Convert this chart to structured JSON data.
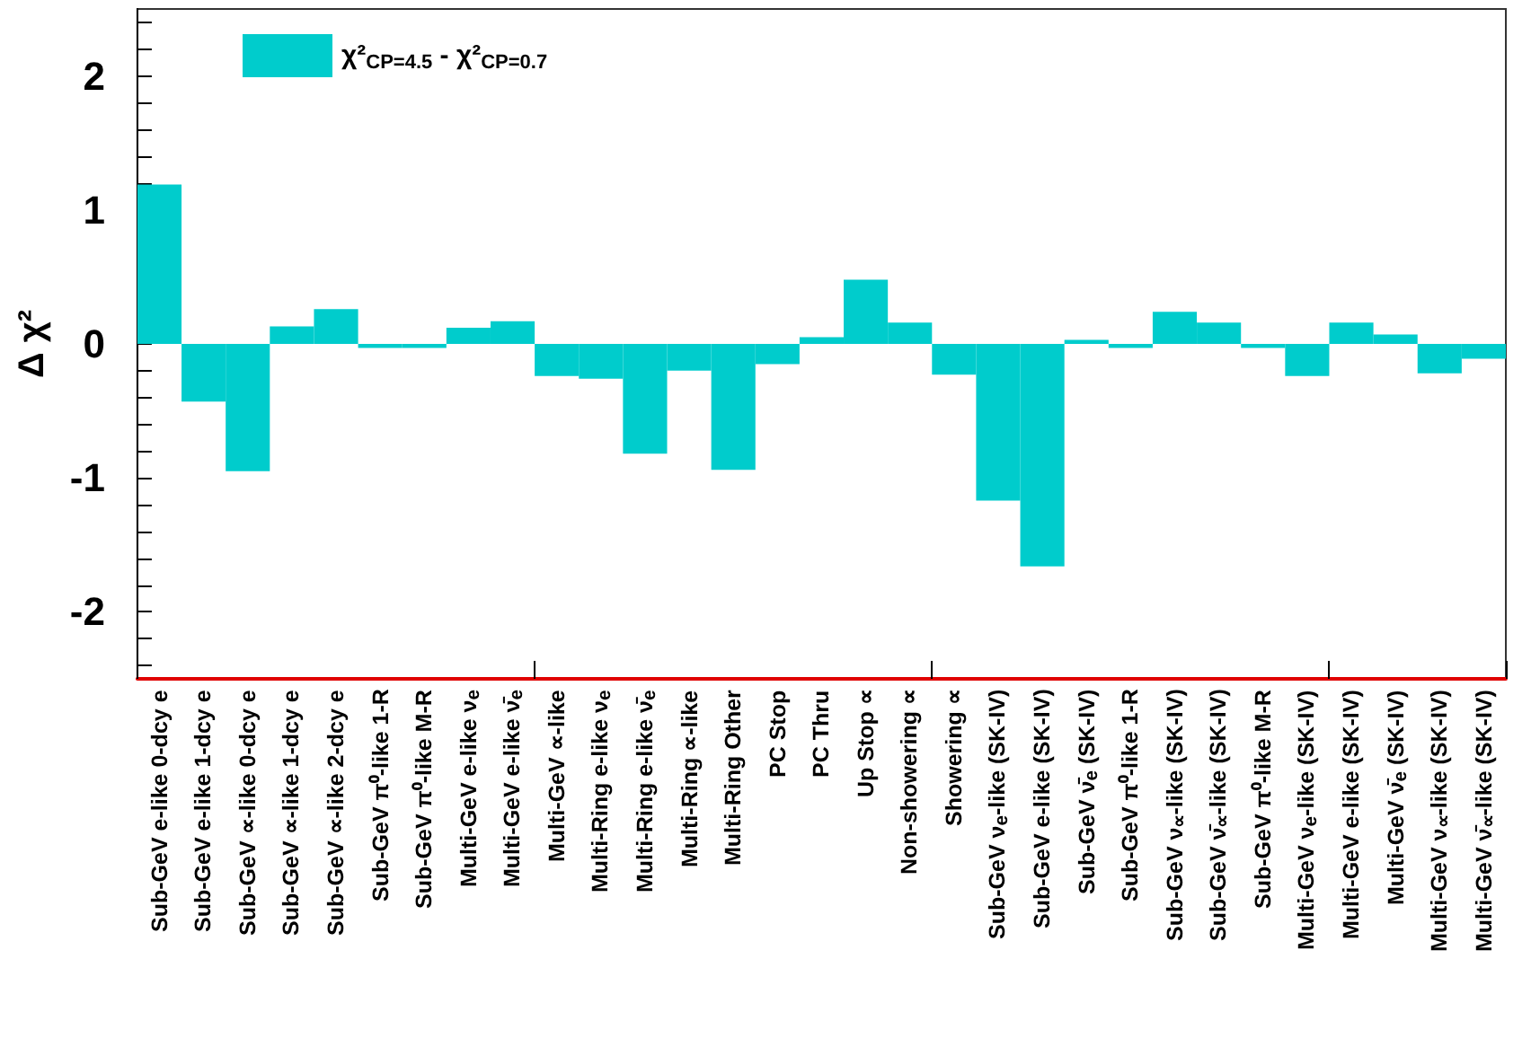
{
  "chart_data": {
    "type": "bar",
    "ylabel": "Δ χ²",
    "categories": [
      "Sub-GeV e-like 0-dcy e",
      "Sub-GeV e-like 1-dcy e",
      "Sub-GeV ∝-like 0-dcy e",
      "Sub-GeV ∝-like 1-dcy e",
      "Sub-GeV ∝-like 2-dcy e",
      "Sub-GeV π⁰-like 1-R",
      "Sub-GeV π⁰-like M-R",
      "Multi-GeV  e-like ν$_{e}$",
      "Multi-GeV e-like ν̄$_{e}$",
      "Multi-GeV ∝-like",
      "Multi-Ring e-like ν$_{e}$",
      "Multi-Ring e-like ν̄$_{e}$",
      "Multi-Ring ∝-like",
      "Multi-Ring Other",
      "PC Stop",
      "PC Thru",
      "Up Stop ∝",
      "Non-showering ∝",
      "Showering ∝",
      "Sub-GeV ν$_{e}$-like (SK-IV)",
      "Sub-GeV e-like (SK-IV)",
      "Sub-GeV ν̄$_{e}$ (SK-IV)",
      "Sub-GeV π⁰-like 1-R",
      "Sub-GeV ν$_{∝}$-like (SK-IV)",
      "Sub-GeV ν̄$_{∝}$-like (SK-IV)",
      "Sub-GeV π⁰-like M-R",
      "Multi-GeV ν$_{e}$-like (SK-IV)",
      "Multi-GeV e-like (SK-IV)",
      "Multi-GeV ν̄$_{e}$ (SK-IV)",
      "Multi-GeV ν$_{∝}$-like (SK-IV)",
      "Multi-GeV ν̄$_{∝}$-like (SK-IV)"
    ],
    "series": [
      {
        "name": "χ²$_{CP=4.5}$ - χ²$_{CP=0.7}$",
        "color": "#00cccc",
        "values": [
          1.19,
          -0.43,
          -0.95,
          0.13,
          0.26,
          -0.03,
          -0.03,
          0.12,
          0.17,
          -0.24,
          -0.26,
          -0.82,
          -0.2,
          -0.94,
          -0.15,
          0.05,
          0.48,
          0.16,
          -0.23,
          -1.17,
          -1.66,
          0.03,
          -0.03,
          0.24,
          0.16,
          -0.03,
          -0.24,
          0.16,
          0.07,
          -0.22,
          -0.11
        ]
      }
    ],
    "ylim": [
      -2.5,
      2.5
    ],
    "yticks": [
      {
        "value": -2.4,
        "label": null
      },
      {
        "value": -2.2,
        "label": null
      },
      -2,
      {
        "value": -1.8,
        "label": null
      },
      {
        "value": -1.6,
        "label": null
      },
      {
        "value": -1.4,
        "label": null
      },
      {
        "value": -1.2,
        "label": null
      },
      -1,
      {
        "value": -0.8,
        "label": null
      },
      {
        "value": -0.6,
        "label": null
      },
      {
        "value": -0.4,
        "label": null
      },
      {
        "value": -0.2,
        "label": null
      },
      0,
      {
        "value": 0.2,
        "label": null
      },
      {
        "value": 0.4,
        "label": null
      },
      {
        "value": 0.6,
        "label": null
      },
      {
        "value": 0.8,
        "label": null
      },
      1,
      {
        "value": 1.2,
        "label": null
      },
      {
        "value": 1.4,
        "label": null
      },
      {
        "value": 1.6,
        "label": null
      },
      {
        "value": 1.8,
        "label": null
      },
      2,
      {
        "value": 2.2,
        "label": null
      },
      {
        "value": 2.4,
        "label": null
      }
    ],
    "grid": false,
    "legend": "top left"
  }
}
